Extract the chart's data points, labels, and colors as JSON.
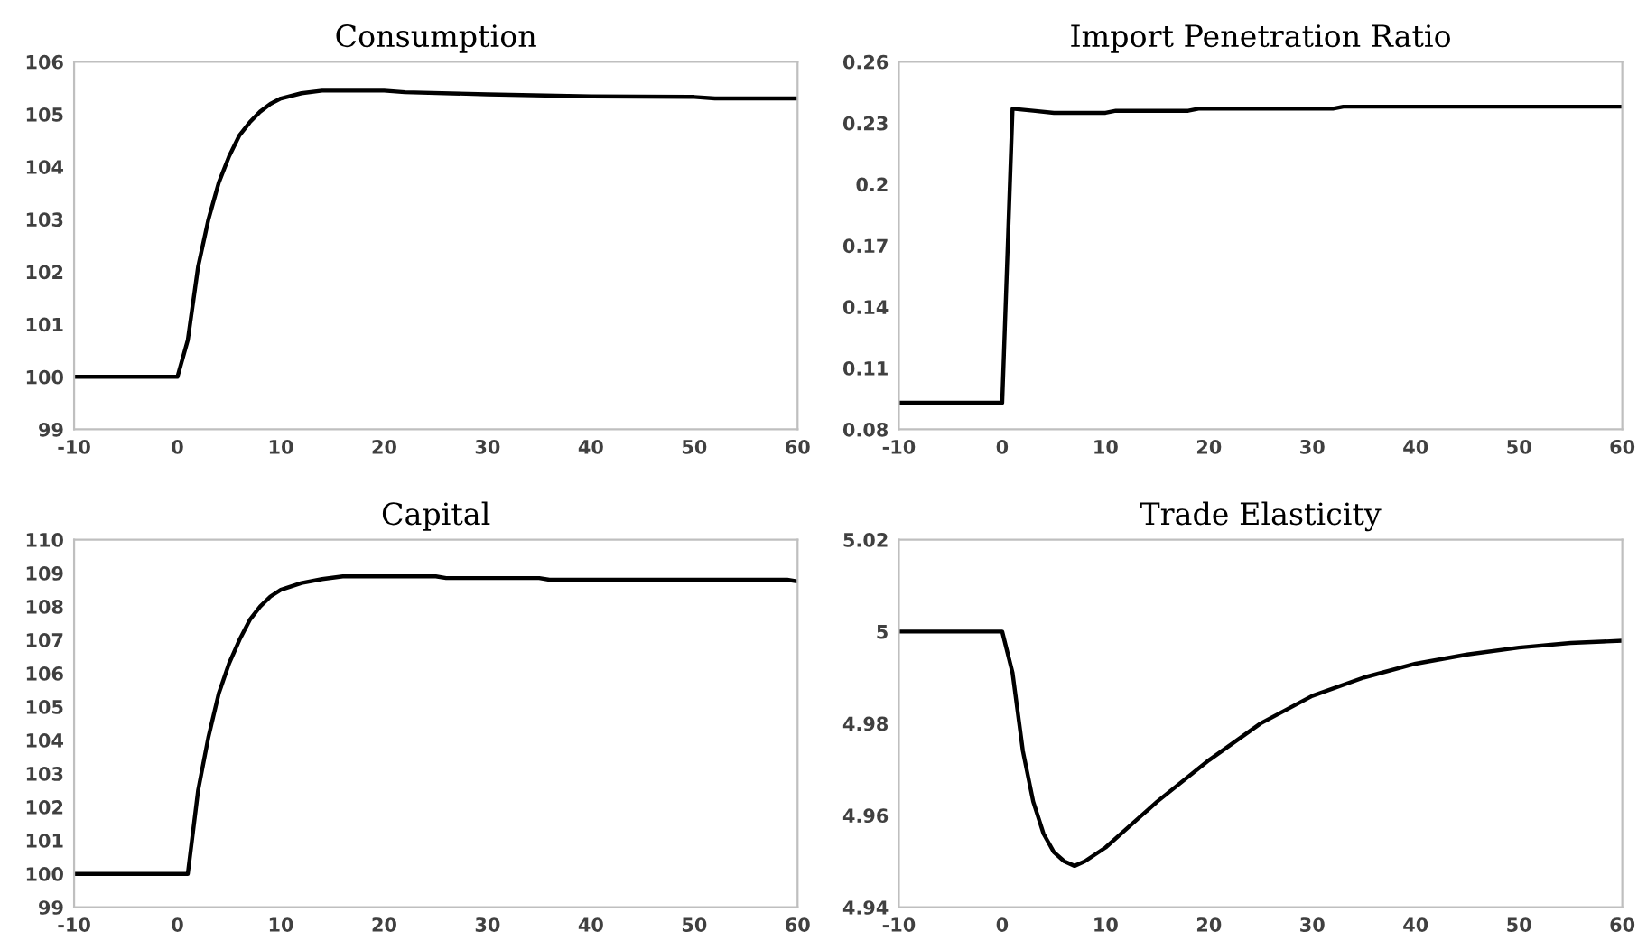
{
  "chart_data": [
    {
      "type": "line",
      "title": "Consumption",
      "xlim": [
        -10,
        60
      ],
      "xticks": [
        -10,
        0,
        10,
        20,
        30,
        40,
        50,
        60
      ],
      "ylim": [
        99,
        106
      ],
      "yticks": [
        99,
        100,
        101,
        102,
        103,
        104,
        105,
        106
      ],
      "series": [
        {
          "color": "#000000",
          "x": [
            -10,
            0,
            1,
            2,
            3,
            4,
            5,
            6,
            7,
            8,
            9,
            10,
            12,
            14,
            20,
            22,
            30,
            40,
            50,
            52,
            60
          ],
          "values": [
            100,
            100,
            100.7,
            102.1,
            103.0,
            103.7,
            104.2,
            104.6,
            104.85,
            105.05,
            105.2,
            105.3,
            105.4,
            105.45,
            105.45,
            105.42,
            105.38,
            105.34,
            105.33,
            105.3,
            105.3
          ]
        }
      ]
    },
    {
      "type": "line",
      "title": "Import Penetration Ratio",
      "xlim": [
        -10,
        60
      ],
      "xticks": [
        -10,
        0,
        10,
        20,
        30,
        40,
        50,
        60
      ],
      "ylim": [
        0.08,
        0.26
      ],
      "yticks": [
        0.08,
        0.11,
        0.14,
        0.17,
        0.2,
        0.23,
        0.26
      ],
      "series": [
        {
          "color": "#000000",
          "x": [
            -10,
            0,
            1,
            3,
            5,
            10,
            11,
            18,
            19,
            32,
            33,
            60
          ],
          "values": [
            0.093,
            0.093,
            0.237,
            0.236,
            0.235,
            0.235,
            0.236,
            0.236,
            0.237,
            0.237,
            0.238,
            0.238
          ]
        }
      ]
    },
    {
      "type": "line",
      "title": "Capital",
      "xlim": [
        -10,
        60
      ],
      "xticks": [
        -10,
        0,
        10,
        20,
        30,
        40,
        50,
        60
      ],
      "ylim": [
        99,
        110
      ],
      "yticks": [
        99,
        100,
        101,
        102,
        103,
        104,
        105,
        106,
        107,
        108,
        109,
        110
      ],
      "series": [
        {
          "color": "#000000",
          "x": [
            -10,
            1,
            2,
            3,
            4,
            5,
            6,
            7,
            8,
            9,
            10,
            12,
            14,
            16,
            25,
            26,
            35,
            36,
            59,
            60
          ],
          "values": [
            100,
            100,
            102.5,
            104.1,
            105.4,
            106.3,
            107.0,
            107.6,
            108.0,
            108.3,
            108.5,
            108.7,
            108.82,
            108.9,
            108.9,
            108.85,
            108.85,
            108.8,
            108.8,
            108.75
          ]
        }
      ]
    },
    {
      "type": "line",
      "title": "Trade Elasticity",
      "xlim": [
        -10,
        60
      ],
      "xticks": [
        -10,
        0,
        10,
        20,
        30,
        40,
        50,
        60
      ],
      "ylim": [
        4.94,
        5.02
      ],
      "yticks": [
        4.94,
        4.96,
        4.98,
        5,
        5.02
      ],
      "series": [
        {
          "color": "#000000",
          "x": [
            -10,
            0,
            1,
            2,
            3,
            4,
            5,
            6,
            7,
            8,
            10,
            12,
            15,
            20,
            25,
            30,
            35,
            40,
            45,
            50,
            55,
            60
          ],
          "values": [
            5.0,
            5.0,
            4.991,
            4.974,
            4.963,
            4.956,
            4.952,
            4.95,
            4.949,
            4.95,
            4.953,
            4.957,
            4.963,
            4.972,
            4.98,
            4.986,
            4.99,
            4.993,
            4.995,
            4.9965,
            4.9975,
            4.998
          ]
        }
      ]
    }
  ]
}
